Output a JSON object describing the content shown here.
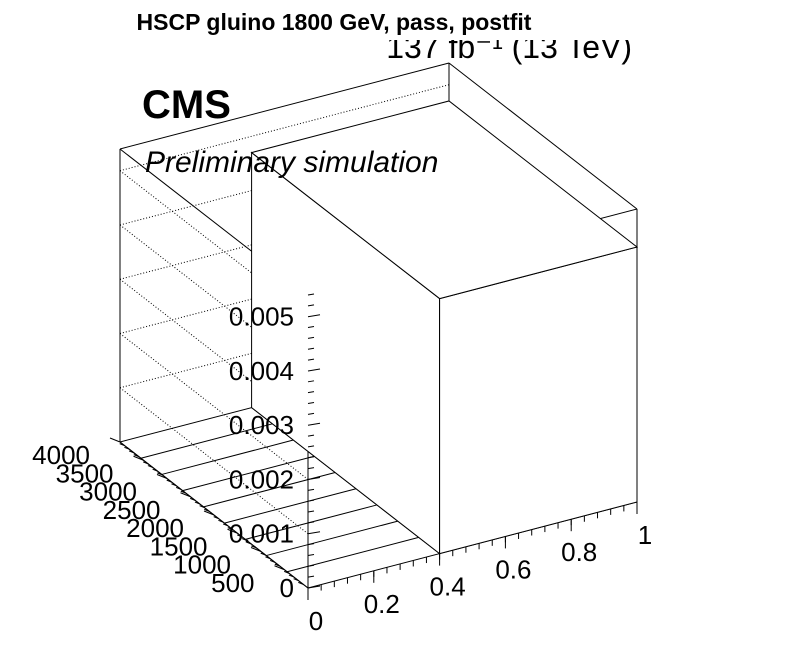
{
  "chart_data": {
    "type": "lego3d",
    "title": "HSCP gluino 1800 GeV, pass, postfit",
    "lumi_label": "137 fb⁻¹ (13 TeV)",
    "experiment_label": "CMS",
    "status_label": "Preliminary simulation",
    "x_axis": {
      "range": [
        0,
        1
      ],
      "ticks": [
        "0",
        "0.2",
        "0.4",
        "0.6",
        "0.8",
        "1"
      ]
    },
    "y_axis": {
      "range": [
        0,
        4000
      ],
      "ticks": [
        "500",
        "1000",
        "1500",
        "2000",
        "2500",
        "3000",
        "3500",
        "4000"
      ]
    },
    "z_axis": {
      "range": [
        0,
        0.0054
      ],
      "ticks": [
        "0",
        "0.001",
        "0.002",
        "0.003",
        "0.004",
        "0.005"
      ]
    },
    "grid": true,
    "bins": [
      {
        "x": [
          0.4,
          1.0
        ],
        "y": [
          0,
          4000
        ],
        "z": 0.0047
      }
    ]
  }
}
